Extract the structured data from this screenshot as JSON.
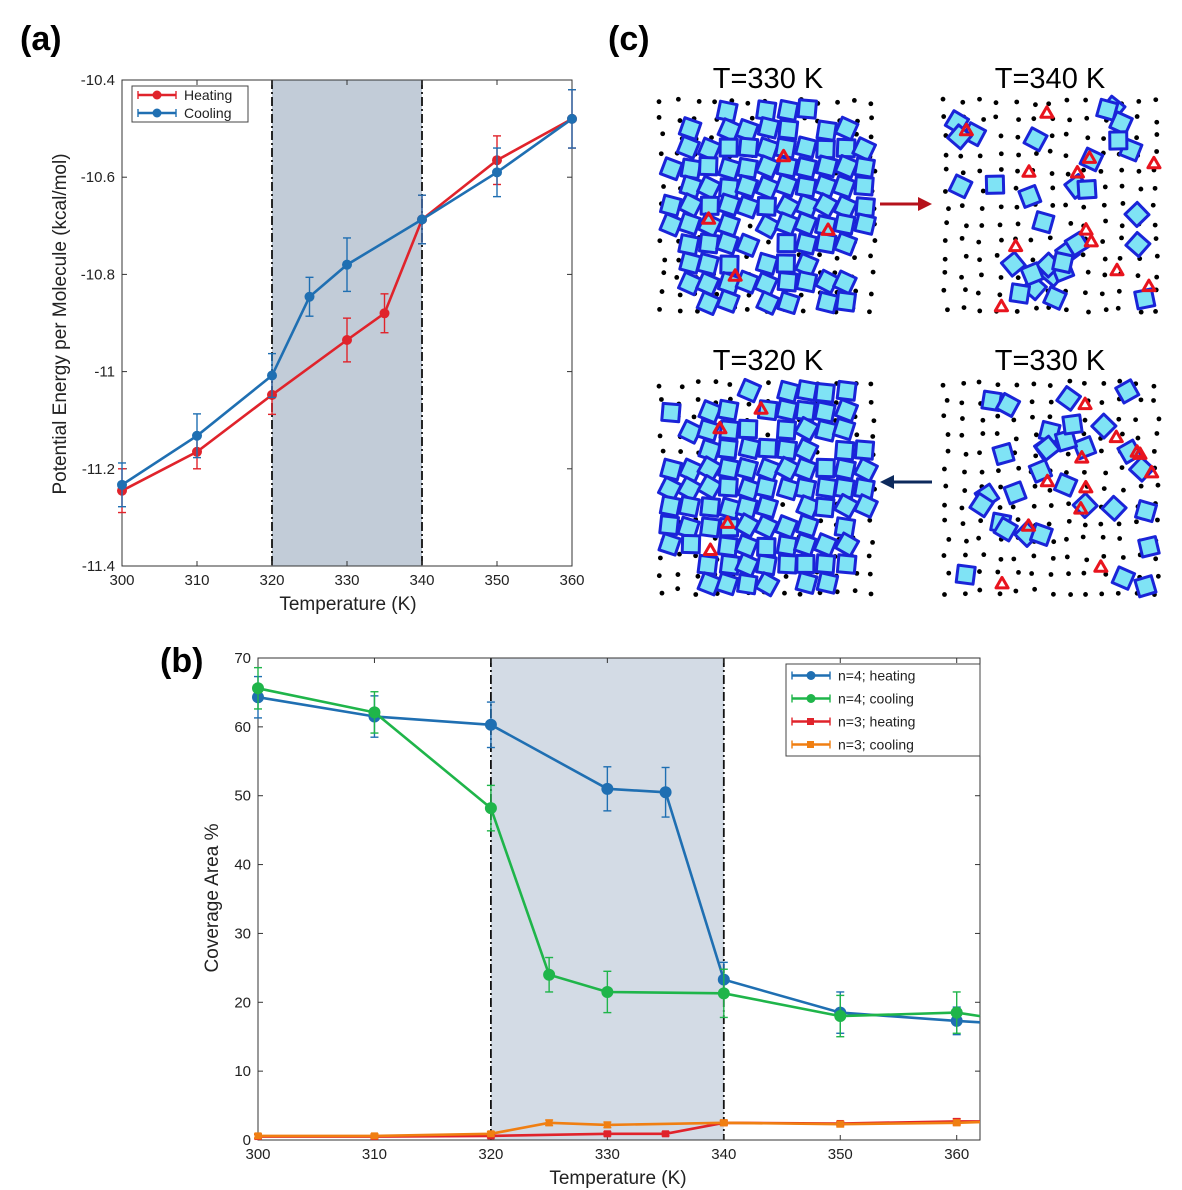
{
  "panels": {
    "a": "(a)",
    "b": "(b)",
    "c": "(c)"
  },
  "chart_data": [
    {
      "id": "a",
      "type": "line",
      "title": "",
      "xlabel": "Temperature (K)",
      "ylabel": "Potential Energy per Molecule (kcal/mol)",
      "xlim": [
        300,
        360
      ],
      "ylim": [
        -11.4,
        -10.4
      ],
      "xticks": [
        300,
        310,
        320,
        330,
        340,
        350,
        360
      ],
      "yticks": [
        -11.4,
        -11.2,
        -11,
        -10.8,
        -10.6,
        -10.4
      ],
      "ytick_labels": [
        "-11.4",
        "-11.2",
        "-11",
        "-10.8",
        "-10.6",
        "-10.4"
      ],
      "shaded_region": [
        320,
        340
      ],
      "dashdot_lines": [
        320,
        340
      ],
      "legend": "top-left",
      "series": [
        {
          "name": "Heating",
          "color": "#e0232b",
          "marker": "circle",
          "x": [
            300,
            310,
            320,
            330,
            335,
            340,
            350,
            360
          ],
          "y": [
            -11.245,
            -11.165,
            -11.048,
            -10.935,
            -10.88,
            -10.687,
            -10.565,
            -10.48
          ],
          "err": [
            0.045,
            0.035,
            0.04,
            0.045,
            0.04,
            0.05,
            0.05,
            0.06
          ]
        },
        {
          "name": "Cooling",
          "color": "#1f6fb2",
          "marker": "circle",
          "x": [
            300,
            310,
            320,
            325,
            330,
            340,
            350,
            360
          ],
          "y": [
            -11.233,
            -11.132,
            -11.008,
            -10.846,
            -10.78,
            -10.687,
            -10.59,
            -10.48
          ],
          "err": [
            0.045,
            0.045,
            0.045,
            0.04,
            0.055,
            0.05,
            0.05,
            0.06
          ]
        }
      ]
    },
    {
      "id": "b",
      "type": "line",
      "title": "",
      "xlabel": "Temperature (K)",
      "ylabel": "Coverage Area %",
      "xlim": [
        300,
        362
      ],
      "ylim": [
        0,
        70
      ],
      "xticks": [
        300,
        310,
        320,
        330,
        340,
        350,
        360
      ],
      "yticks": [
        0,
        10,
        20,
        30,
        40,
        50,
        60,
        70
      ],
      "ytick_labels": [
        "0",
        "10",
        "20",
        "30",
        "40",
        "50",
        "60",
        "70"
      ],
      "shaded_region": [
        320,
        340
      ],
      "dashdot_lines": [
        320,
        340
      ],
      "legend": "top-right",
      "series": [
        {
          "name": "n=4; heating",
          "color": "#1f6fb2",
          "marker": "circle",
          "x": [
            300,
            310,
            320,
            330,
            335,
            340,
            350,
            360,
            362
          ],
          "y": [
            64.3,
            61.5,
            60.3,
            51.0,
            50.5,
            23.3,
            18.5,
            17.3,
            17.1
          ],
          "err": [
            3,
            3,
            3.3,
            3.2,
            3.6,
            2.5,
            3,
            2,
            null
          ]
        },
        {
          "name": "n=4; cooling",
          "color": "#1fb54a",
          "marker": "circle",
          "x": [
            300,
            310,
            320,
            325,
            330,
            340,
            350,
            360,
            362
          ],
          "y": [
            65.6,
            62.1,
            48.2,
            24.0,
            21.5,
            21.3,
            18.0,
            18.5,
            18.0
          ],
          "err": [
            3,
            3,
            3.3,
            2.5,
            3,
            3.5,
            3,
            3,
            null
          ]
        },
        {
          "name": "n=3; heating",
          "color": "#e0232b",
          "marker": "square",
          "x": [
            300,
            310,
            320,
            330,
            335,
            340,
            350,
            360,
            362
          ],
          "y": [
            0.5,
            0.5,
            0.6,
            0.9,
            0.9,
            2.5,
            2.4,
            2.7,
            2.7
          ],
          "err": [
            0.3,
            0.3,
            0.3,
            0.3,
            0.3,
            0.3,
            0.3,
            0.4,
            null
          ]
        },
        {
          "name": "n=3; cooling",
          "color": "#f07f12",
          "marker": "square",
          "x": [
            300,
            310,
            320,
            325,
            330,
            340,
            350,
            360,
            362
          ],
          "y": [
            0.6,
            0.6,
            0.9,
            2.5,
            2.2,
            2.5,
            2.3,
            2.5,
            2.6
          ],
          "err": [
            0.3,
            0.3,
            0.3,
            0.4,
            0.4,
            0.4,
            0.4,
            0.4,
            null
          ]
        }
      ]
    }
  ],
  "panel_c": {
    "snapshots": [
      {
        "title": "T=330 K",
        "order": 1,
        "layout": "cluster-large"
      },
      {
        "title": "T=340 K",
        "order": 2,
        "layout": "dispersed"
      },
      {
        "title": "T=320 K",
        "order": 3,
        "layout": "cluster-large"
      },
      {
        "title": "T=330 K",
        "order": 4,
        "layout": "dispersed"
      }
    ],
    "arrow_right_color": "#b5121b",
    "arrow_left_color": "#0d2a5c",
    "molecule_fill": "#7fe3f5",
    "molecule_edge": "#1a24d8",
    "trimer_color": "#e8141e"
  }
}
